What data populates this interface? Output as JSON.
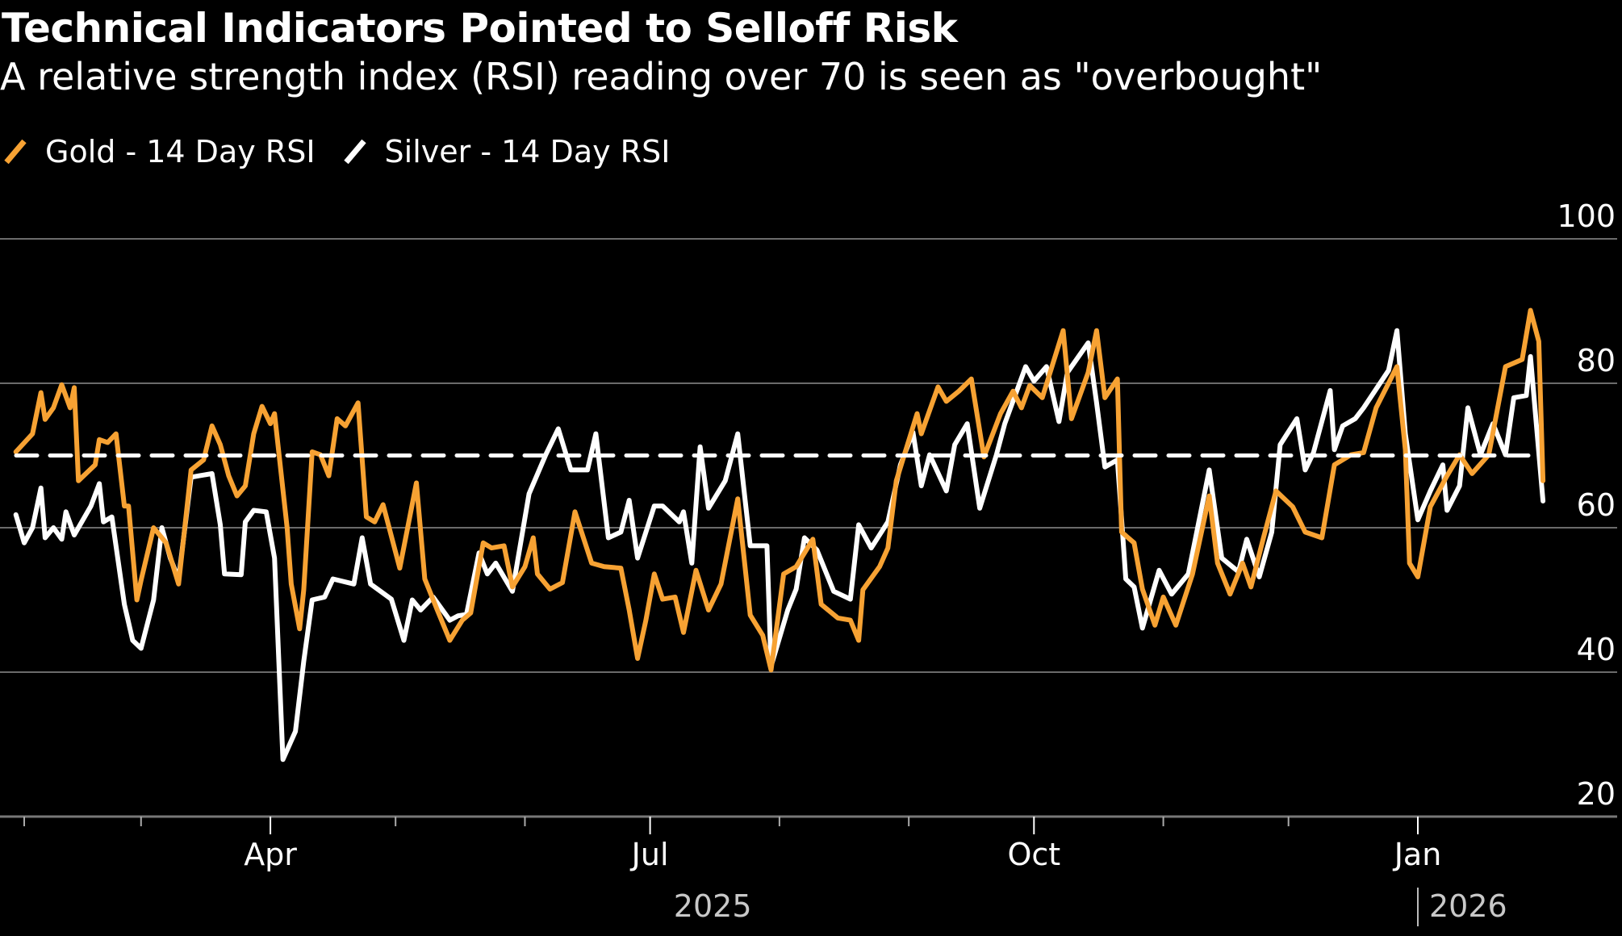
{
  "title": "Technical Indicators Pointed to Selloff Risk",
  "subtitle": "A relative strength index (RSI) reading over 70 is seen as \"overbought\"",
  "legend": [
    {
      "label": "Gold - 14 Day RSI",
      "color": "#F7A233"
    },
    {
      "label": "Silver - 14 Day RSI",
      "color": "#FFFFFF"
    }
  ],
  "chart_data": {
    "type": "line",
    "title": "Technical Indicators Pointed to Selloff Risk",
    "subtitle": "A relative strength index (RSI) reading over 70 is seen as \"overbought\"",
    "xlabel": "",
    "ylabel": "",
    "x_unit": "days since 2025-02-01",
    "xlim": [
      -3,
      368
    ],
    "ylim": [
      20,
      100
    ],
    "yticks": [
      20,
      40,
      60,
      80,
      100
    ],
    "y_axis_side": "right",
    "grid": true,
    "legend_position": "top-left",
    "xticks": [
      {
        "day": 0,
        "label": ""
      },
      {
        "day": 28,
        "label": ""
      },
      {
        "day": 59,
        "label": "Apr"
      },
      {
        "day": 89,
        "label": ""
      },
      {
        "day": 120,
        "label": ""
      },
      {
        "day": 150,
        "label": "Jul"
      },
      {
        "day": 181,
        "label": ""
      },
      {
        "day": 212,
        "label": ""
      },
      {
        "day": 242,
        "label": "Oct"
      },
      {
        "day": 273,
        "label": ""
      },
      {
        "day": 303,
        "label": ""
      },
      {
        "day": 334,
        "label": "Jan"
      }
    ],
    "year_labels": [
      {
        "day": 165,
        "label": "2025"
      },
      {
        "day": 334,
        "label": "2026",
        "separator": true
      }
    ],
    "reference_line": {
      "value": 70,
      "style": "dashed",
      "color": "#FFFFFF"
    },
    "series": [
      {
        "name": "Gold - 14 Day RSI",
        "color": "#F7A233",
        "points": [
          [
            -2,
            70.5
          ],
          [
            2,
            73
          ],
          [
            4,
            78.7
          ],
          [
            5,
            75
          ],
          [
            7,
            76.6
          ],
          [
            9,
            79.8
          ],
          [
            11,
            76.6
          ],
          [
            12,
            79.4
          ],
          [
            13,
            66.5
          ],
          [
            17,
            68.7
          ],
          [
            18,
            72.2
          ],
          [
            20,
            71.8
          ],
          [
            22,
            73
          ],
          [
            24,
            63
          ],
          [
            25,
            63
          ],
          [
            27,
            50
          ],
          [
            28,
            52.7
          ],
          [
            31,
            60
          ],
          [
            34,
            57.9
          ],
          [
            37,
            52.2
          ],
          [
            40,
            68
          ],
          [
            43,
            69.4
          ],
          [
            45,
            74.1
          ],
          [
            47,
            71.5
          ],
          [
            49,
            67.2
          ],
          [
            51,
            64.4
          ],
          [
            53,
            65.8
          ],
          [
            55,
            73
          ],
          [
            57,
            76.8
          ],
          [
            59,
            74.4
          ],
          [
            60,
            75.8
          ],
          [
            63,
            60
          ],
          [
            64,
            52.2
          ],
          [
            66,
            46
          ],
          [
            67,
            51.4
          ],
          [
            69,
            70.5
          ],
          [
            71,
            70.1
          ],
          [
            73,
            67.2
          ],
          [
            75,
            75.1
          ],
          [
            77,
            74.1
          ],
          [
            80,
            77.3
          ],
          [
            82,
            61.5
          ],
          [
            84,
            60.8
          ],
          [
            86,
            63.2
          ],
          [
            90,
            54.4
          ],
          [
            94,
            66.2
          ],
          [
            96,
            52.9
          ],
          [
            99,
            48.6
          ],
          [
            102,
            44.4
          ],
          [
            105,
            47.2
          ],
          [
            107,
            48.2
          ],
          [
            110,
            57.9
          ],
          [
            112,
            57.2
          ],
          [
            115,
            57.5
          ],
          [
            117,
            51.8
          ],
          [
            120,
            54.6
          ],
          [
            122,
            58.6
          ],
          [
            123,
            53.6
          ],
          [
            126,
            51.5
          ],
          [
            129,
            52.4
          ],
          [
            132,
            62.2
          ],
          [
            136,
            55.1
          ],
          [
            139,
            54.6
          ],
          [
            143,
            54.4
          ],
          [
            145,
            48.6
          ],
          [
            147,
            41.9
          ],
          [
            149,
            47.2
          ],
          [
            151,
            53.6
          ],
          [
            153,
            50.1
          ],
          [
            156,
            50.4
          ],
          [
            158,
            45.5
          ],
          [
            161,
            54.1
          ],
          [
            164,
            48.6
          ],
          [
            167,
            52.2
          ],
          [
            171,
            64
          ],
          [
            174,
            47.9
          ],
          [
            177,
            45.1
          ],
          [
            179,
            40.3
          ],
          [
            182,
            53.6
          ],
          [
            185,
            54.6
          ],
          [
            189,
            58.4
          ],
          [
            191,
            49.4
          ],
          [
            195,
            47.5
          ],
          [
            198,
            47.2
          ],
          [
            200,
            44.4
          ],
          [
            201,
            51.4
          ],
          [
            205,
            54.6
          ],
          [
            207,
            57.2
          ],
          [
            209,
            66.5
          ],
          [
            214,
            75.8
          ],
          [
            215,
            73
          ],
          [
            219,
            79.5
          ],
          [
            221,
            77.5
          ],
          [
            224,
            78.9
          ],
          [
            227,
            80.6
          ],
          [
            230,
            69.8
          ],
          [
            234,
            75.8
          ],
          [
            237,
            78.9
          ],
          [
            239,
            76.6
          ],
          [
            241,
            79.7
          ],
          [
            244,
            78
          ],
          [
            249,
            87.3
          ],
          [
            251,
            75.1
          ],
          [
            255,
            81.5
          ],
          [
            257,
            87.3
          ],
          [
            259,
            78
          ],
          [
            262,
            80.6
          ],
          [
            263,
            59.4
          ],
          [
            266,
            57.9
          ],
          [
            268,
            51.5
          ],
          [
            271,
            46.5
          ],
          [
            273,
            50.4
          ],
          [
            276,
            46.5
          ],
          [
            280,
            53.6
          ],
          [
            284,
            64.4
          ],
          [
            286,
            55.1
          ],
          [
            289,
            50.8
          ],
          [
            292,
            55.1
          ],
          [
            294,
            51.8
          ],
          [
            297,
            58.6
          ],
          [
            300,
            65.1
          ],
          [
            304,
            62.9
          ],
          [
            307,
            59.4
          ],
          [
            311,
            58.6
          ],
          [
            314,
            68.7
          ],
          [
            318,
            70.1
          ],
          [
            321,
            70.4
          ],
          [
            324,
            76.6
          ],
          [
            329,
            82.3
          ],
          [
            331,
            70.8
          ],
          [
            332,
            55.1
          ],
          [
            334,
            53.2
          ],
          [
            337,
            62.9
          ],
          [
            341,
            67.2
          ],
          [
            344,
            70.1
          ],
          [
            347,
            67.5
          ],
          [
            351,
            70.1
          ],
          [
            355,
            82.3
          ],
          [
            359,
            83.3
          ],
          [
            361,
            90.1
          ],
          [
            363,
            85.8
          ],
          [
            364,
            66.5
          ]
        ]
      },
      {
        "name": "Silver - 14 Day RSI",
        "color": "#FFFFFF",
        "points": [
          [
            -2,
            61.8
          ],
          [
            0,
            57.9
          ],
          [
            2,
            60
          ],
          [
            4,
            65.5
          ],
          [
            5,
            58.6
          ],
          [
            7,
            60
          ],
          [
            9,
            58.4
          ],
          [
            10,
            62.2
          ],
          [
            12,
            59
          ],
          [
            16,
            63
          ],
          [
            18,
            66.1
          ],
          [
            19,
            60.8
          ],
          [
            21,
            61.5
          ],
          [
            24,
            49.4
          ],
          [
            26,
            44.4
          ],
          [
            28,
            43.3
          ],
          [
            31,
            50
          ],
          [
            33,
            60
          ],
          [
            35,
            55.8
          ],
          [
            37,
            52.9
          ],
          [
            40,
            67
          ],
          [
            42,
            67.2
          ],
          [
            45,
            67.5
          ],
          [
            47,
            60.4
          ],
          [
            48,
            53.6
          ],
          [
            52,
            53.5
          ],
          [
            53,
            60.8
          ],
          [
            55,
            62.4
          ],
          [
            58,
            62.2
          ],
          [
            60,
            55.8
          ],
          [
            62,
            27.9
          ],
          [
            65,
            31.8
          ],
          [
            67,
            41.5
          ],
          [
            69,
            50
          ],
          [
            72,
            50.4
          ],
          [
            74,
            52.9
          ],
          [
            79,
            52.2
          ],
          [
            81,
            58.6
          ],
          [
            83,
            52.2
          ],
          [
            88,
            50.1
          ],
          [
            91,
            44.4
          ],
          [
            93,
            50
          ],
          [
            95,
            48.6
          ],
          [
            98,
            50.4
          ],
          [
            102,
            47.2
          ],
          [
            104,
            47.8
          ],
          [
            106,
            48
          ],
          [
            109,
            56.5
          ],
          [
            111,
            53.6
          ],
          [
            113,
            55.1
          ],
          [
            117,
            51.2
          ],
          [
            121,
            64.7
          ],
          [
            125,
            70.1
          ],
          [
            128,
            73.7
          ],
          [
            131,
            68
          ],
          [
            133,
            68
          ],
          [
            135,
            68
          ],
          [
            137,
            73
          ],
          [
            140,
            58.6
          ],
          [
            143,
            59.4
          ],
          [
            145,
            63.8
          ],
          [
            147,
            55.8
          ],
          [
            151,
            63
          ],
          [
            153,
            63
          ],
          [
            157,
            60.8
          ],
          [
            158,
            62.2
          ],
          [
            160,
            55.1
          ],
          [
            162,
            71.2
          ],
          [
            164,
            62.7
          ],
          [
            168,
            66.5
          ],
          [
            171,
            73
          ],
          [
            174,
            57.5
          ],
          [
            178,
            57.5
          ],
          [
            179,
            40.8
          ],
          [
            183,
            48.6
          ],
          [
            185,
            51.5
          ],
          [
            187,
            58.6
          ],
          [
            190,
            56.9
          ],
          [
            194,
            51.2
          ],
          [
            198,
            50.1
          ],
          [
            200,
            60.4
          ],
          [
            203,
            57.2
          ],
          [
            207,
            60.8
          ],
          [
            210,
            68.7
          ],
          [
            213,
            73.2
          ],
          [
            215,
            65.8
          ],
          [
            217,
            70.1
          ],
          [
            221,
            65.1
          ],
          [
            223,
            71.5
          ],
          [
            226,
            74.4
          ],
          [
            229,
            62.7
          ],
          [
            233,
            70.1
          ],
          [
            235,
            74.4
          ],
          [
            240,
            82.3
          ],
          [
            242,
            80.3
          ],
          [
            245,
            82.3
          ],
          [
            248,
            74.7
          ],
          [
            250,
            81.5
          ],
          [
            255,
            85.6
          ],
          [
            257,
            77.3
          ],
          [
            259,
            68.4
          ],
          [
            262,
            69.4
          ],
          [
            264,
            52.9
          ],
          [
            266,
            51.8
          ],
          [
            268,
            46.1
          ],
          [
            272,
            54.1
          ],
          [
            275,
            50.8
          ],
          [
            279,
            53.6
          ],
          [
            284,
            68
          ],
          [
            287,
            55.8
          ],
          [
            291,
            53.9
          ],
          [
            293,
            58.4
          ],
          [
            296,
            53.2
          ],
          [
            299,
            59.4
          ],
          [
            301,
            71.5
          ],
          [
            305,
            75.1
          ],
          [
            307,
            68
          ],
          [
            309,
            70.4
          ],
          [
            313,
            79
          ],
          [
            314,
            70.8
          ],
          [
            316,
            74.1
          ],
          [
            319,
            75.1
          ],
          [
            321,
            76.6
          ],
          [
            327,
            81.8
          ],
          [
            329,
            87.3
          ],
          [
            331,
            73
          ],
          [
            334,
            61.1
          ],
          [
            337,
            65.1
          ],
          [
            340,
            68.7
          ],
          [
            341,
            62.4
          ],
          [
            344,
            65.8
          ],
          [
            346,
            76.6
          ],
          [
            349,
            70.1
          ],
          [
            352,
            74.4
          ],
          [
            355,
            70.1
          ],
          [
            357,
            78
          ],
          [
            360,
            78.3
          ],
          [
            361,
            83.7
          ],
          [
            364,
            63.7
          ]
        ]
      }
    ]
  }
}
